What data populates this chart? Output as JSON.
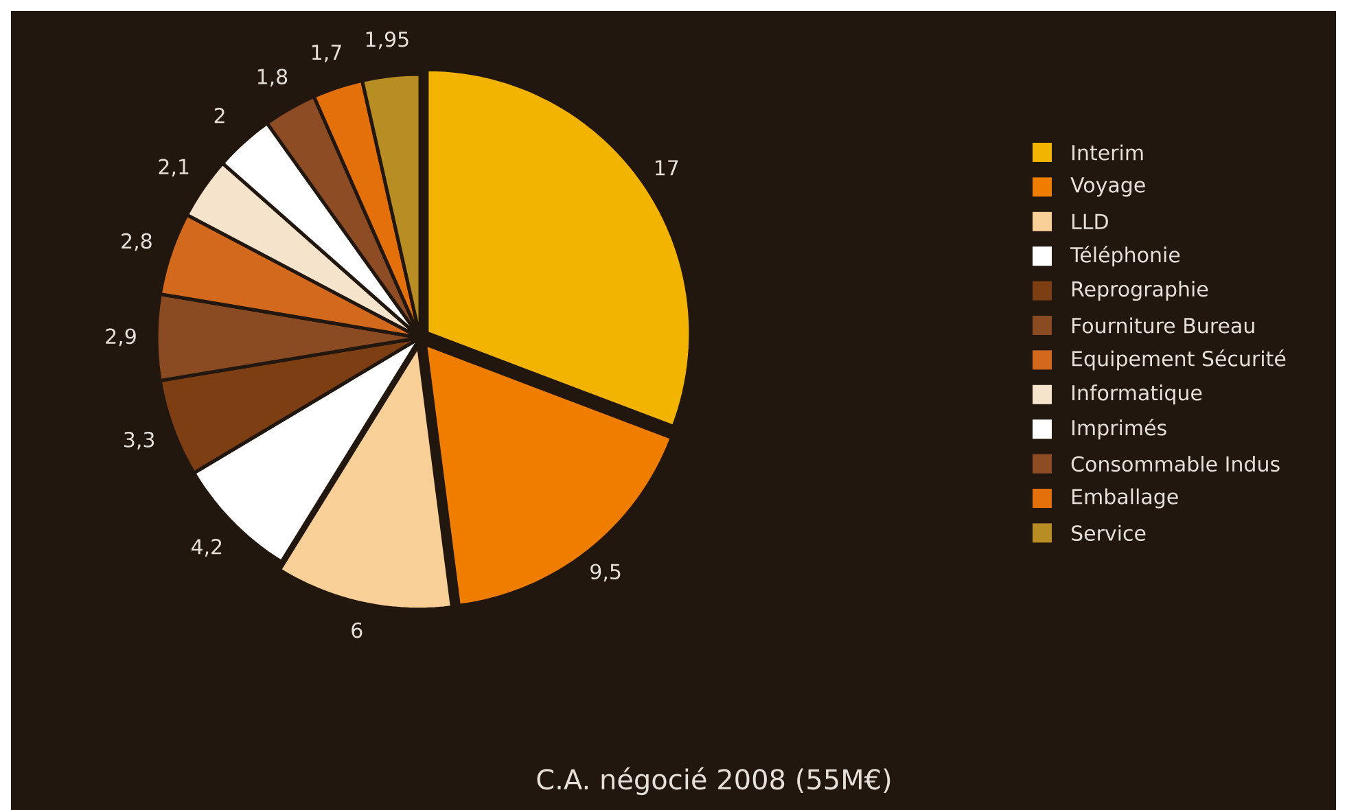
{
  "chart_data": {
    "type": "pie",
    "title": "C.A. négocié 2008 (55M€)",
    "categories": [
      "Interim",
      "Voyage",
      "LLD",
      "Téléphonie",
      "Reprographie",
      "Fourniture Bureau",
      "Equipement Sécurité",
      "Informatique",
      "Imprimés",
      "Consommable Indus",
      "Emballage",
      "Service"
    ],
    "values": [
      17,
      9.5,
      6,
      4.2,
      3.3,
      2.9,
      2.8,
      2.1,
      2,
      1.8,
      1.7,
      1.95
    ],
    "value_labels": [
      "17",
      "9,5",
      "6",
      "4,2",
      "3,3",
      "2,9",
      "2,8",
      "2,1",
      "2",
      "1,8",
      "1,7",
      "1,95"
    ],
    "colors": [
      "#f2b400",
      "#ee7d00",
      "#f9cf98",
      "#ffffff",
      "#7e3e14",
      "#8a4a22",
      "#d2691c",
      "#f6e3cc",
      "#ffffff",
      "#8e4c24",
      "#e3700a",
      "#b88d24"
    ],
    "legend": "right"
  }
}
